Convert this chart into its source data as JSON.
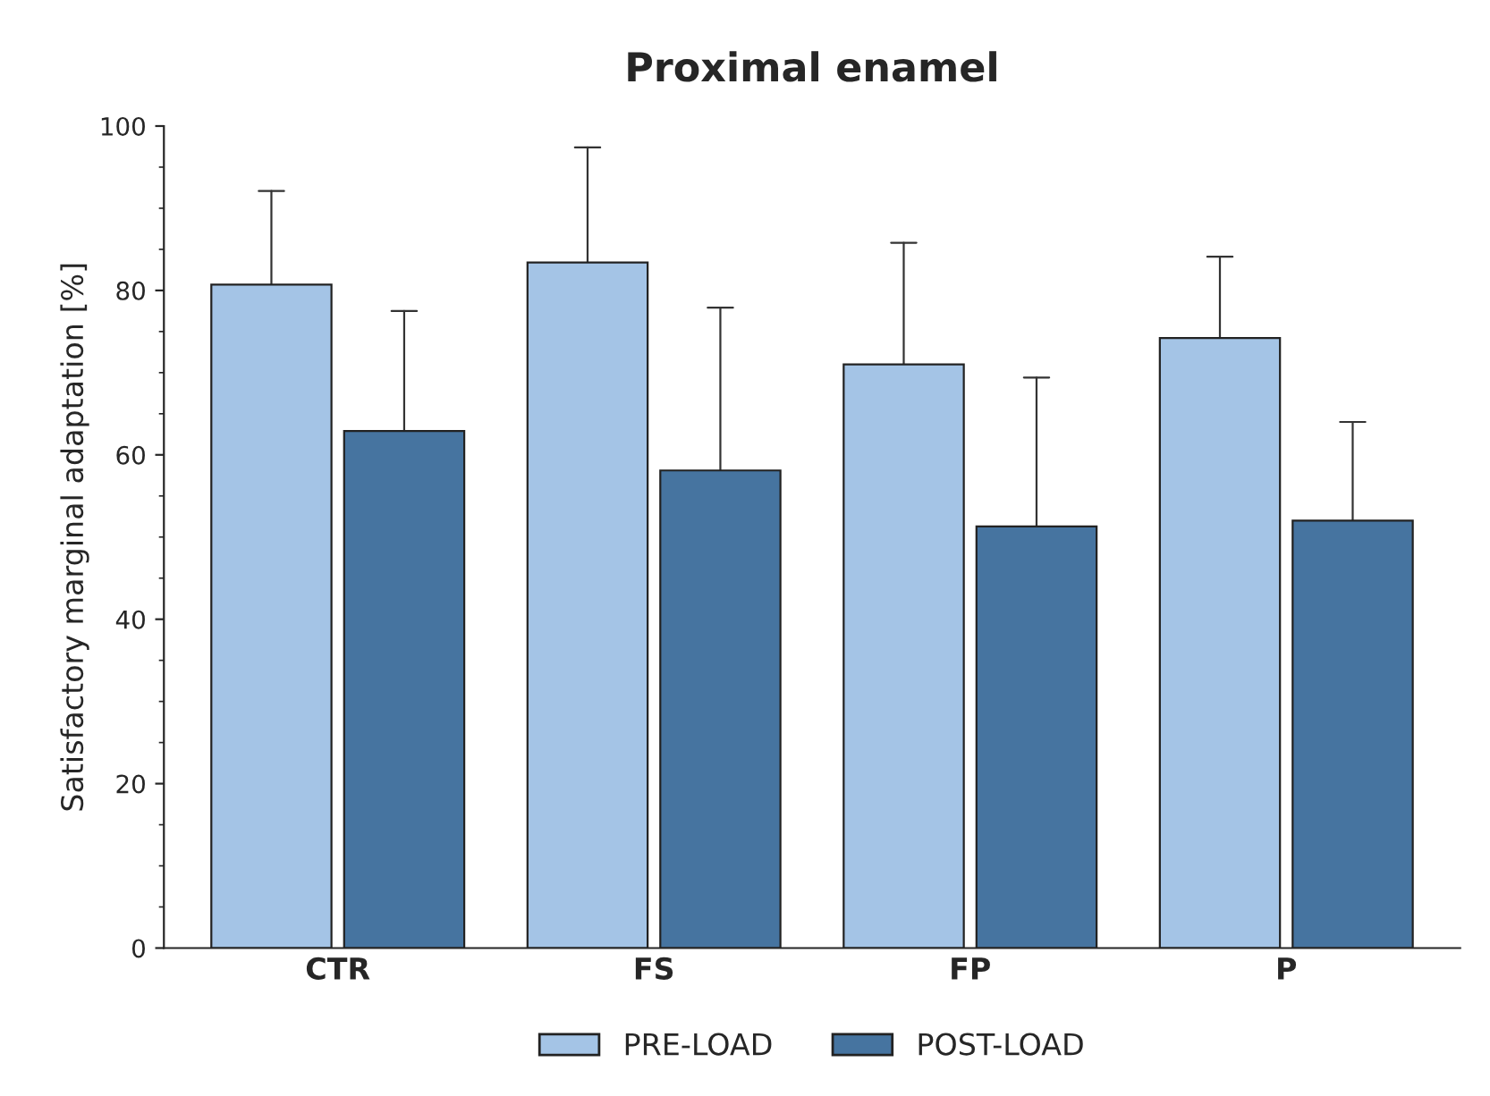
{
  "chart_data": {
    "type": "bar",
    "title": "Proximal enamel",
    "ylabel": "Satisfactory marginal adaptation [%]",
    "categories": [
      "CTR",
      "FS",
      "FP",
      "P"
    ],
    "series": [
      {
        "name": "PRE-LOAD",
        "color": "#a4c4e6",
        "values": [
          80.7,
          83.4,
          71.0,
          74.2
        ],
        "errors": [
          [
            80.7,
            92.1
          ],
          [
            83.4,
            97.4
          ],
          [
            71.0,
            85.8
          ],
          [
            74.2,
            84.1
          ]
        ]
      },
      {
        "name": "POST-LOAD",
        "color": "#4674a0",
        "values": [
          62.9,
          58.1,
          51.3,
          52.0
        ],
        "errors": [
          [
            62.9,
            77.5
          ],
          [
            58.1,
            77.9
          ],
          [
            51.3,
            69.4
          ],
          [
            52.0,
            64.0
          ]
        ]
      }
    ],
    "ylim": [
      0,
      100
    ],
    "yticks": [
      0,
      20,
      40,
      60,
      80,
      100
    ],
    "grid": false,
    "legend": "bottom"
  }
}
